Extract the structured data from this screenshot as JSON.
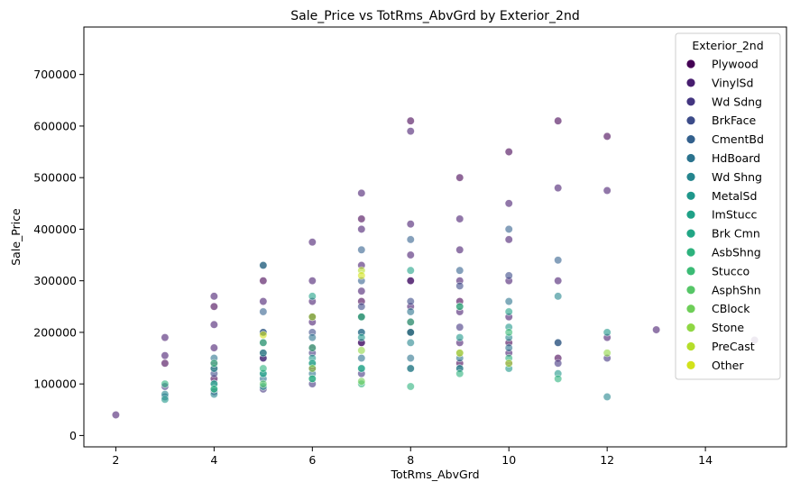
{
  "chart_data": {
    "type": "scatter",
    "title": "Sale_Price vs TotRms_AbvGrd by Exterior_2nd",
    "xlabel": "TotRms_AbvGrd",
    "ylabel": "Sale_Price",
    "xlim": [
      1.35,
      15.65
    ],
    "ylim": [
      -22000,
      792000
    ],
    "xticks": [
      2,
      4,
      6,
      8,
      10,
      12,
      14
    ],
    "yticks": [
      0,
      100000,
      200000,
      300000,
      400000,
      500000,
      600000,
      700000
    ],
    "grid": false,
    "legend": {
      "title": "Exterior_2nd",
      "placement": "top-right",
      "entries": [
        {
          "name": "Plywood",
          "color": "#440154"
        },
        {
          "name": "VinylSd",
          "color": "#471d6f"
        },
        {
          "name": "Wd Sdng",
          "color": "#433580"
        },
        {
          "name": "BrkFace",
          "color": "#3c4b89"
        },
        {
          "name": "CmentBd",
          "color": "#33608d"
        },
        {
          "name": "HdBoard",
          "color": "#2b738e"
        },
        {
          "name": "Wd Shng",
          "color": "#25858e"
        },
        {
          "name": "MetalSd",
          "color": "#1f978b"
        },
        {
          "name": "ImStucc",
          "color": "#1fa187"
        },
        {
          "name": "Brk Cmn",
          "color": "#21a685"
        },
        {
          "name": "AsbShng",
          "color": "#2db27d"
        },
        {
          "name": "Stucco",
          "color": "#3bbb75"
        },
        {
          "name": "AsphShn",
          "color": "#56c667"
        },
        {
          "name": "CBlock",
          "color": "#6ece58"
        },
        {
          "name": "Stone",
          "color": "#8fd744"
        },
        {
          "name": "PreCast",
          "color": "#b5de2b"
        },
        {
          "name": "Other",
          "color": "#d2e21b"
        }
      ]
    },
    "series": [
      {
        "name": "Plywood",
        "x": [
          3,
          4,
          4,
          5,
          5,
          6,
          6,
          7,
          7,
          7,
          8,
          8,
          8,
          9,
          9,
          9,
          10,
          10,
          11,
          11,
          12
        ],
        "y": [
          140000,
          110000,
          250000,
          150000,
          300000,
          130000,
          230000,
          180000,
          260000,
          420000,
          200000,
          300000,
          610000,
          140000,
          260000,
          500000,
          180000,
          550000,
          150000,
          610000,
          580000
        ]
      },
      {
        "name": "VinylSd",
        "x": [
          2,
          3,
          3,
          4,
          4,
          4,
          4,
          5,
          5,
          5,
          5,
          6,
          6,
          6,
          6,
          6,
          7,
          7,
          7,
          7,
          7,
          7,
          8,
          8,
          8,
          8,
          8,
          8,
          9,
          9,
          9,
          9,
          9,
          10,
          10,
          10,
          10,
          10,
          11,
          11,
          11,
          12,
          12,
          13,
          15
        ],
        "y": [
          40000,
          155000,
          190000,
          130000,
          170000,
          215000,
          270000,
          160000,
          200000,
          260000,
          330000,
          170000,
          220000,
          260000,
          300000,
          375000,
          180000,
          230000,
          280000,
          330000,
          400000,
          470000,
          200000,
          250000,
          300000,
          350000,
          410000,
          590000,
          180000,
          240000,
          300000,
          360000,
          420000,
          160000,
          230000,
          300000,
          380000,
          450000,
          180000,
          300000,
          480000,
          190000,
          475000,
          205000,
          185000
        ]
      },
      {
        "name": "Wd Sdng",
        "x": [
          3,
          4,
          4,
          5,
          5,
          6,
          6,
          7,
          7,
          8,
          8,
          9,
          9,
          10,
          11,
          12
        ],
        "y": [
          95000,
          85000,
          140000,
          90000,
          150000,
          100000,
          160000,
          120000,
          200000,
          130000,
          220000,
          130000,
          210000,
          140000,
          140000,
          150000
        ]
      },
      {
        "name": "BrkFace",
        "x": [
          4,
          5,
          6,
          7,
          8,
          9,
          10
        ],
        "y": [
          120000,
          180000,
          200000,
          250000,
          260000,
          290000,
          310000
        ]
      },
      {
        "name": "CmentBd",
        "x": [
          5,
          6,
          7,
          7,
          8,
          9,
          10,
          11
        ],
        "y": [
          240000,
          230000,
          300000,
          360000,
          380000,
          320000,
          400000,
          340000
        ]
      },
      {
        "name": "HdBoard",
        "x": [
          3,
          4,
          4,
          5,
          5,
          6,
          6,
          7,
          7,
          8,
          8,
          9,
          9,
          10,
          10,
          11
        ],
        "y": [
          75000,
          100000,
          150000,
          110000,
          200000,
          120000,
          190000,
          150000,
          230000,
          150000,
          240000,
          150000,
          250000,
          170000,
          260000,
          180000
        ]
      },
      {
        "name": "Wd Shng",
        "x": [
          3,
          4,
          5,
          5,
          6,
          7,
          8,
          9,
          10,
          11,
          12
        ],
        "y": [
          80000,
          80000,
          120000,
          330000,
          140000,
          200000,
          180000,
          160000,
          190000,
          270000,
          75000
        ]
      },
      {
        "name": "MetalSd",
        "x": [
          3,
          4,
          4,
          5,
          5,
          6,
          6,
          7,
          7,
          8,
          8,
          9,
          9,
          10,
          10,
          11,
          12
        ],
        "y": [
          70000,
          90000,
          130000,
          95000,
          160000,
          110000,
          150000,
          130000,
          190000,
          130000,
          200000,
          130000,
          190000,
          130000,
          210000,
          120000,
          200000
        ]
      },
      {
        "name": "ImStucc",
        "x": [
          6,
          8,
          10
        ],
        "y": [
          270000,
          320000,
          240000
        ]
      },
      {
        "name": "Brk Cmn",
        "x": [
          4,
          5,
          6,
          7
        ],
        "y": [
          100000,
          120000,
          140000,
          130000
        ]
      },
      {
        "name": "AsbShng",
        "x": [
          3,
          4,
          5,
          6,
          7,
          8,
          9,
          10,
          11
        ],
        "y": [
          100000,
          90000,
          130000,
          110000,
          100000,
          95000,
          120000,
          150000,
          110000
        ]
      },
      {
        "name": "Stucco",
        "x": [
          4,
          5,
          6,
          7,
          8,
          9,
          10
        ],
        "y": [
          140000,
          180000,
          170000,
          230000,
          220000,
          250000,
          200000
        ]
      },
      {
        "name": "AsphShn",
        "x": [
          5
        ],
        "y": [
          100000
        ]
      },
      {
        "name": "CBlock",
        "x": [
          7
        ],
        "y": [
          105000
        ]
      },
      {
        "name": "Stone",
        "x": [
          6,
          7,
          12
        ],
        "y": [
          130000,
          165000,
          160000
        ]
      },
      {
        "name": "PreCast",
        "x": [
          6,
          7,
          10
        ],
        "y": [
          230000,
          320000,
          140000
        ]
      },
      {
        "name": "Other",
        "x": [
          5,
          7,
          9
        ],
        "y": [
          195000,
          310000,
          160000
        ]
      }
    ]
  }
}
